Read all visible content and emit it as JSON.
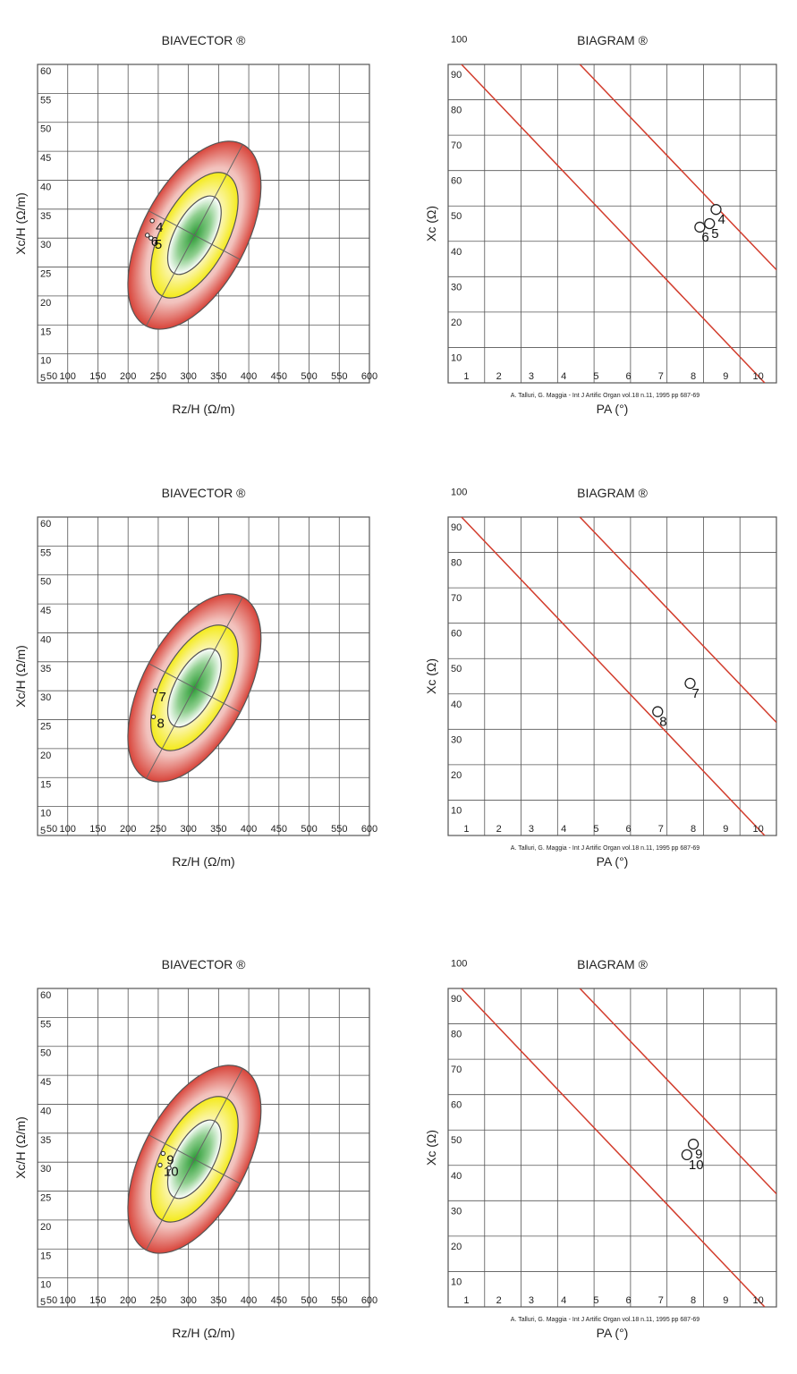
{
  "colors": {
    "red": "#d8443a",
    "yellow": "#f4ea1a",
    "green": "#2a9b34",
    "grid": "#555555",
    "line": "#d23c2c"
  },
  "chart_data": [
    {
      "type": "scatter",
      "kind": "biavector",
      "title": "BIAVECTOR ®",
      "xlabel": "Rz/H (Ω/m)",
      "ylabel": "Xc/H (Ω/m)",
      "xlim": [
        50,
        600
      ],
      "ylim": [
        5,
        60
      ],
      "xticks": [
        "50",
        "100",
        "150",
        "200",
        "250",
        "300",
        "350",
        "400",
        "450",
        "500",
        "550",
        "600"
      ],
      "yticks": [
        "5",
        "10",
        "15",
        "20",
        "25",
        "30",
        "35",
        "40",
        "45",
        "50",
        "55",
        "60"
      ],
      "points": [
        {
          "label": "4",
          "x": 240,
          "y": 33
        },
        {
          "label": "5",
          "x": 238,
          "y": 30
        },
        {
          "label": "6",
          "x": 232,
          "y": 30.5
        }
      ]
    },
    {
      "type": "scatter",
      "kind": "biagram",
      "title": "BIAGRAM ®",
      "xlabel": "PA (°)",
      "ylabel": "Xc (Ω)",
      "xlim": [
        1,
        10
      ],
      "ylim": [
        10,
        100
      ],
      "xticks": [
        "1",
        "2",
        "3",
        "4",
        "5",
        "6",
        "7",
        "8",
        "9",
        "10"
      ],
      "yticks": [
        "10",
        "20",
        "30",
        "40",
        "50",
        "60",
        "70",
        "80",
        "90",
        "100"
      ],
      "citation": "A. Talluri, G. Maggia - Int J Artific Organ vol.18 n.11, 1995 pp 687-69",
      "points": [
        {
          "label": "4",
          "x": 8.7,
          "y": 59
        },
        {
          "label": "5",
          "x": 8.5,
          "y": 55
        },
        {
          "label": "6",
          "x": 8.2,
          "y": 54
        }
      ]
    },
    {
      "type": "scatter",
      "kind": "biavector",
      "title": "BIAVECTOR ®",
      "xlabel": "Rz/H (Ω/m)",
      "ylabel": "Xc/H (Ω/m)",
      "xlim": [
        50,
        600
      ],
      "ylim": [
        5,
        60
      ],
      "xticks": [
        "50",
        "100",
        "150",
        "200",
        "250",
        "300",
        "350",
        "400",
        "450",
        "500",
        "550",
        "600"
      ],
      "yticks": [
        "5",
        "10",
        "15",
        "20",
        "25",
        "30",
        "35",
        "40",
        "45",
        "50",
        "55",
        "60"
      ],
      "points": [
        {
          "label": "7",
          "x": 245,
          "y": 30
        },
        {
          "label": "8",
          "x": 242,
          "y": 25.5
        }
      ]
    },
    {
      "type": "scatter",
      "kind": "biagram",
      "title": "BIAGRAM ®",
      "xlabel": "PA (°)",
      "ylabel": "Xc (Ω)",
      "xlim": [
        1,
        10
      ],
      "ylim": [
        10,
        100
      ],
      "xticks": [
        "1",
        "2",
        "3",
        "4",
        "5",
        "6",
        "7",
        "8",
        "9",
        "10"
      ],
      "yticks": [
        "10",
        "20",
        "30",
        "40",
        "50",
        "60",
        "70",
        "80",
        "90",
        "100"
      ],
      "citation": "A. Talluri, G. Maggia - Int J Artific Organ vol.18 n.11, 1995 pp 687-69",
      "points": [
        {
          "label": "7",
          "x": 7.9,
          "y": 53
        },
        {
          "label": "8",
          "x": 6.9,
          "y": 45
        }
      ]
    },
    {
      "type": "scatter",
      "kind": "biavector",
      "title": "BIAVECTOR ®",
      "xlabel": "Rz/H (Ω/m)",
      "ylabel": "Xc/H (Ω/m)",
      "xlim": [
        50,
        600
      ],
      "ylim": [
        5,
        60
      ],
      "xticks": [
        "50",
        "100",
        "150",
        "200",
        "250",
        "300",
        "350",
        "400",
        "450",
        "500",
        "550",
        "600"
      ],
      "yticks": [
        "5",
        "10",
        "15",
        "20",
        "25",
        "30",
        "35",
        "40",
        "45",
        "50",
        "55",
        "60"
      ],
      "points": [
        {
          "label": "9",
          "x": 258,
          "y": 31.5
        },
        {
          "label": "10",
          "x": 253,
          "y": 29.5
        },
        {
          "label": "",
          "x": 268,
          "y": 29
        }
      ]
    },
    {
      "type": "scatter",
      "kind": "biagram",
      "title": "BIAGRAM ®",
      "xlabel": "PA (°)",
      "ylabel": "Xc (Ω)",
      "xlim": [
        1,
        10
      ],
      "ylim": [
        10,
        100
      ],
      "xticks": [
        "1",
        "2",
        "3",
        "4",
        "5",
        "6",
        "7",
        "8",
        "9",
        "10"
      ],
      "yticks": [
        "10",
        "20",
        "30",
        "40",
        "50",
        "60",
        "70",
        "80",
        "90",
        "100"
      ],
      "citation": "A. Talluri, G. Maggia - Int J Artific Organ vol.18 n.11, 1995 pp 687-69",
      "points": [
        {
          "label": "9",
          "x": 8.0,
          "y": 56
        },
        {
          "label": "10",
          "x": 7.8,
          "y": 53
        }
      ]
    }
  ]
}
